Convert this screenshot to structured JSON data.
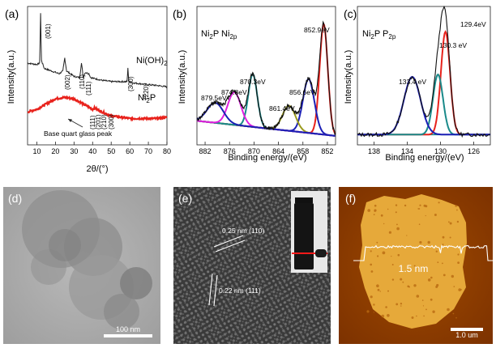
{
  "panels": {
    "a": {
      "label": "(a)",
      "xlabel": "2θ/(°)",
      "ylabel": "Intensity(a.u.)",
      "xticks": [
        "10",
        "20",
        "30",
        "40",
        "50",
        "60",
        "70",
        "80"
      ],
      "series": [
        {
          "name": "Ni(OH)",
          "sub": "2",
          "color": "#222222"
        },
        {
          "name": "Ni",
          "sub": "2",
          "suffix": "P",
          "color": "#e8221c"
        }
      ],
      "peaks_top": [
        "(001)",
        "(002)",
        "(110)",
        "(111)",
        "(300)",
        "(220)"
      ],
      "peaks_bottom": [
        "(111)",
        "(201)",
        "(210)",
        "(300)"
      ],
      "annotation": "Base quart glass peak"
    },
    "b": {
      "label": "(b)",
      "title_a": "Ni",
      "title_a_sub": "2",
      "title_b": "P Ni",
      "title_b_sub": "2p",
      "xlabel": "Binding energy/(eV)",
      "ylabel": "Intensity(a.u.)",
      "xticks": [
        "882",
        "876",
        "870",
        "864",
        "858",
        "852"
      ],
      "peaks": [
        "879.5eV",
        "874.8eV",
        "870.3eV",
        "861.4eV",
        "856.6eV",
        "852.9eV"
      ]
    },
    "c": {
      "label": "(c)",
      "title_a": "Ni",
      "title_a_sub": "2",
      "title_b": "P P",
      "title_b_sub": "2p",
      "xlabel": "Binding energy/(eV)",
      "ylabel": "Intensity(a.u.)",
      "xticks": [
        "138",
        "134",
        "130",
        "126"
      ],
      "peaks": [
        "133.4 eV",
        "130.3 eV",
        "129.4eV"
      ]
    },
    "d": {
      "label": "(d)",
      "scale": "100 nm"
    },
    "e": {
      "label": "(e)",
      "lattice_1": "0.25 nm (110)",
      "lattice_2": "0.22 nm (111)"
    },
    "f": {
      "label": "(f)",
      "height": "1.5 nm",
      "scale": "1.0 um"
    }
  },
  "chart_data": [
    {
      "type": "line",
      "xlabel": "2θ/(°)",
      "ylabel": "Intensity(a.u.)",
      "xlim": [
        5,
        80
      ],
      "series": [
        {
          "name": "Ni(OH)2",
          "x": [
            5,
            10,
            11.5,
            12,
            12.5,
            14,
            20,
            22,
            24,
            25,
            26,
            30,
            33,
            34,
            35,
            36,
            38,
            39,
            45,
            50,
            58.5,
            59,
            59.5,
            62,
            68,
            75,
            80
          ],
          "y": [
            62,
            61,
            62,
            100,
            64,
            58,
            55,
            54,
            56,
            66,
            56,
            52,
            51,
            62,
            51,
            55,
            54,
            51,
            49,
            48,
            48,
            58,
            48,
            47,
            46,
            45,
            44
          ]
        },
        {
          "name": "Ni2P",
          "x": [
            5,
            10,
            15,
            20,
            25,
            30,
            35,
            40,
            41,
            45,
            50,
            55,
            60,
            65,
            70,
            75,
            80
          ],
          "y": [
            25,
            27,
            31,
            35,
            36,
            35,
            31,
            27,
            28,
            25,
            22,
            21,
            20,
            20,
            20,
            20,
            21
          ]
        }
      ]
    },
    {
      "type": "line",
      "xlabel": "Binding energy/(eV)",
      "ylabel": "Intensity(a.u.)",
      "xlim": [
        884,
        850
      ],
      "series": [
        {
          "name": "852.9eV",
          "center": 852.9,
          "height": 0.88,
          "width": 1.0,
          "color": "#e8221c"
        },
        {
          "name": "856.6eV",
          "center": 856.6,
          "height": 0.43,
          "width": 1.4,
          "color": "#1b1fb5"
        },
        {
          "name": "861.4eV",
          "center": 861.4,
          "height": 0.2,
          "width": 1.6,
          "color": "#9a9a1c"
        },
        {
          "name": "870.3eV",
          "center": 870.3,
          "height": 0.42,
          "width": 1.1,
          "color": "#1a8a8a"
        },
        {
          "name": "874.8eV",
          "center": 874.8,
          "height": 0.26,
          "width": 1.6,
          "color": "#e020e0"
        },
        {
          "name": "879.5eV",
          "center": 879.5,
          "height": 0.16,
          "width": 2.0,
          "color": "#1b1fb5"
        }
      ]
    },
    {
      "type": "line",
      "xlabel": "Binding energy/(eV)",
      "ylabel": "Intensity(a.u.)",
      "xlim": [
        140,
        124
      ],
      "series": [
        {
          "name": "129.4eV",
          "center": 129.4,
          "height": 0.82,
          "width": 0.55,
          "color": "#e8221c"
        },
        {
          "name": "130.3 eV",
          "center": 130.3,
          "height": 0.48,
          "width": 0.6,
          "color": "#1a8a8a"
        },
        {
          "name": "133.4 eV",
          "center": 133.4,
          "height": 0.46,
          "width": 1.0,
          "color": "#1b1fb5"
        }
      ]
    }
  ]
}
